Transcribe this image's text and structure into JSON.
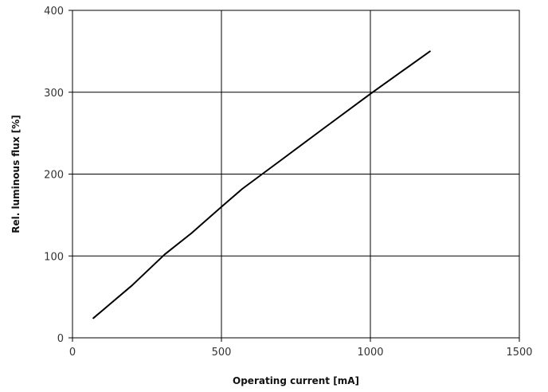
{
  "chart_data": {
    "type": "line",
    "title": "",
    "xlabel": "Operating current [mA]",
    "ylabel": "Rel. luminous flux [%]",
    "xlim": [
      0,
      1500
    ],
    "ylim": [
      0,
      400
    ],
    "xticks": [
      0,
      500,
      1000,
      1500
    ],
    "yticks": [
      0,
      100,
      200,
      300,
      400
    ],
    "grid": true,
    "series": [
      {
        "x": [
          70,
          200,
          310,
          400,
          500,
          570,
          700,
          840,
          1000,
          1100,
          1200
        ],
        "y": [
          24,
          64,
          102,
          128,
          160,
          182,
          217,
          255,
          298,
          324,
          350
        ]
      }
    ]
  }
}
